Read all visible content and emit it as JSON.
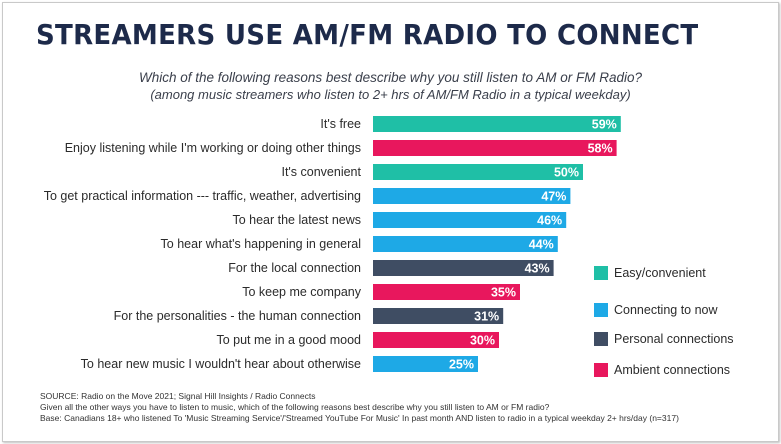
{
  "title": "STREAMERS USE AM/FM RADIO TO CONNECT",
  "subtitle_line1": "Which of the following reasons best describe why you still listen to AM or FM Radio?",
  "subtitle_line2": "(among music streamers who listen to 2+ hrs of AM/FM Radio in a typical weekday)",
  "colors": {
    "easy": "#1fbfa6",
    "connecting": "#1ea9e6",
    "personal": "#3f4d63",
    "ambient": "#e8175d"
  },
  "chart_data": {
    "type": "bar",
    "orientation": "horizontal",
    "categories": [
      "It's free",
      "Enjoy listening while I'm working or doing other things",
      "It's convenient",
      "To get practical information --- traffic, weather, advertising",
      "To hear the latest news",
      "To hear what's happening in general",
      "For the local connection",
      "To keep me company",
      "For the personalities - the human connection",
      "To put me in a good mood",
      "To hear new music I wouldn't hear about otherwise"
    ],
    "values": [
      59,
      58,
      50,
      47,
      46,
      44,
      43,
      35,
      31,
      30,
      25
    ],
    "value_labels": [
      "59%",
      "58%",
      "50%",
      "47%",
      "46%",
      "44%",
      "43%",
      "35%",
      "31%",
      "30%",
      "25%"
    ],
    "groups": [
      "easy",
      "ambient",
      "easy",
      "connecting",
      "connecting",
      "connecting",
      "personal",
      "ambient",
      "personal",
      "ambient",
      "connecting"
    ],
    "xlim": [
      0,
      100
    ],
    "grid": false,
    "legend": {
      "position": "right",
      "entries": [
        {
          "key": "easy",
          "label": "Easy/convenient"
        },
        {
          "key": "connecting",
          "label": "Connecting to now"
        },
        {
          "key": "personal",
          "label": "Personal connections"
        },
        {
          "key": "ambient",
          "label": "Ambient connections"
        }
      ]
    }
  },
  "footer": {
    "source": "SOURCE: Radio on the Move 2021; Signal Hill Insights / Radio Connects",
    "question": "Given all the other ways you have to listen to music, which of the following reasons best describe why you still listen to AM or FM radio?",
    "base": "Base: Canadians 18+ who listened To 'Music Streaming Service'/'Streamed YouTube For Music' In past month AND listen to radio in a typical weekday 2+ hrs/day (n=317)"
  }
}
